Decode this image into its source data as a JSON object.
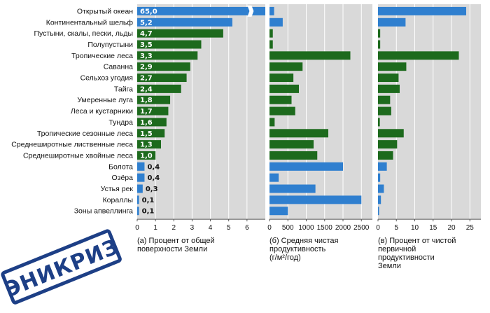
{
  "chart_data": {
    "type": "bar",
    "categories": [
      "Открытый океан",
      "Континентальный шельф",
      "Пустыни, скалы, пески, льды",
      "Полупустыни",
      "Тропические леса",
      "Саванна",
      "Сельхоз угодия",
      "Тайга",
      "Умеренные луга",
      "Леса и кустарники",
      "Тундра",
      "Тропические сезонные леса",
      "Среднеширотные лиственные леса",
      "Среднеширотные хвойные леса",
      "Болота",
      "Озёра",
      "Устья рек",
      "Кораллы",
      "Зоны апвеллинга"
    ],
    "category_group": [
      "water",
      "water",
      "land",
      "land",
      "land",
      "land",
      "land",
      "land",
      "land",
      "land",
      "land",
      "land",
      "land",
      "land",
      "water",
      "water",
      "water",
      "water",
      "water"
    ],
    "colors": {
      "water": "#2f7fcf",
      "land": "#1d6a1d",
      "grid_bg": "#d9d9d9",
      "grid_line": "#ffffff",
      "stamp": "#1d3f86"
    },
    "panels": [
      {
        "id": "a",
        "caption_lines": [
          "(а) Процент от общей",
          "поверхности Земли"
        ],
        "xlim": [
          0,
          7
        ],
        "xticks": [
          0,
          1,
          2,
          3,
          4,
          5,
          6
        ],
        "tick_labels": [
          "0",
          "1",
          "2",
          "3",
          "4",
          "5",
          "6"
        ],
        "values": [
          65.0,
          5.2,
          4.7,
          3.5,
          3.3,
          2.9,
          2.7,
          2.4,
          1.8,
          1.7,
          1.6,
          1.5,
          1.3,
          1.0,
          0.4,
          0.4,
          0.3,
          0.1,
          0.1
        ],
        "value_labels": [
          "65,0",
          "5,2",
          "4,7",
          "3,5",
          "3,3",
          "2,9",
          "2,7",
          "2,4",
          "1,8",
          "1,7",
          "1,6",
          "1,5",
          "1,3",
          "1,0",
          "0,4",
          "0,4",
          "0,3",
          "0,1",
          "0,1"
        ],
        "broken_axis_first_bar": true
      },
      {
        "id": "b",
        "caption_lines": [
          "(б) Средняя чистая",
          "продуктивность",
          "(г/м²/год)"
        ],
        "xlim": [
          0,
          2800
        ],
        "xticks": [
          0,
          500,
          1000,
          1500,
          2000,
          2500
        ],
        "tick_labels": [
          "0",
          "500",
          "1000",
          "1500",
          "2000",
          "2500"
        ],
        "values": [
          125,
          360,
          90,
          90,
          2200,
          900,
          650,
          800,
          600,
          700,
          140,
          1600,
          1200,
          1300,
          2000,
          250,
          1250,
          2500,
          500
        ]
      },
      {
        "id": "c",
        "caption_lines": [
          "(в) Процент от чистой",
          "первичной",
          "продуктивности",
          "Земли"
        ],
        "xlim": [
          0,
          28
        ],
        "xticks": [
          0,
          5,
          10,
          15,
          20,
          25
        ],
        "tick_labels": [
          "0",
          "5",
          "10",
          "15",
          "20",
          "25"
        ],
        "values": [
          24.0,
          7.5,
          0.6,
          0.6,
          22.0,
          7.7,
          5.6,
          5.9,
          3.3,
          3.6,
          0.5,
          7.0,
          5.2,
          4.1,
          2.4,
          0.6,
          1.6,
          0.8,
          0.2
        ]
      }
    ],
    "title": "",
    "xlabel": "",
    "ylabel": ""
  },
  "stamp": {
    "text": "ЭНИКРИЗ"
  }
}
